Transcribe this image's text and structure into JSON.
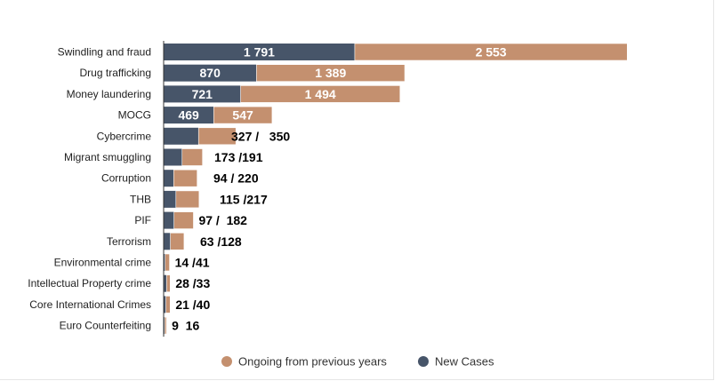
{
  "chart_data": {
    "type": "bar",
    "orientation": "horizontal",
    "stacked": true,
    "categories": [
      "Swindling and fraud",
      "Drug trafficking",
      "Money laundering",
      "MOCG",
      "Cybercrime",
      "Migrant smuggling",
      "Corruption",
      "THB",
      "PIF",
      "Terrorism",
      "Environmental crime",
      "Intellectual Property crime",
      "Core International Crimes",
      "Euro Counterfeiting"
    ],
    "series": [
      {
        "name": "New Cases",
        "color": "#475569",
        "values": [
          1791,
          870,
          721,
          469,
          327,
          173,
          94,
          115,
          97,
          63,
          14,
          28,
          21,
          9
        ]
      },
      {
        "name": "Ongoing from previous years",
        "color": "#c4906f",
        "values": [
          2553,
          1389,
          1494,
          547,
          350,
          191,
          220,
          217,
          182,
          128,
          41,
          33,
          40,
          16
        ]
      }
    ],
    "data_labels_inside": [
      [
        "1 791",
        "2 553"
      ],
      [
        "870",
        "1 389"
      ],
      [
        "721",
        "1 494"
      ],
      [
        "469",
        "547"
      ]
    ],
    "data_labels_outside": [
      "327 /   350",
      "173 /191",
      "94 / 220",
      "115 /217",
      "97 /  182",
      "63 /128",
      "14 /41",
      "28 /33",
      "21 /40",
      "9  16"
    ],
    "legend": [
      {
        "name": "Ongoing from previous years",
        "color": "#c4906f"
      },
      {
        "name": "New Cases",
        "color": "#475569"
      }
    ],
    "legend_position": "bottom",
    "grid": false,
    "xlim": [
      0,
      4350
    ]
  }
}
